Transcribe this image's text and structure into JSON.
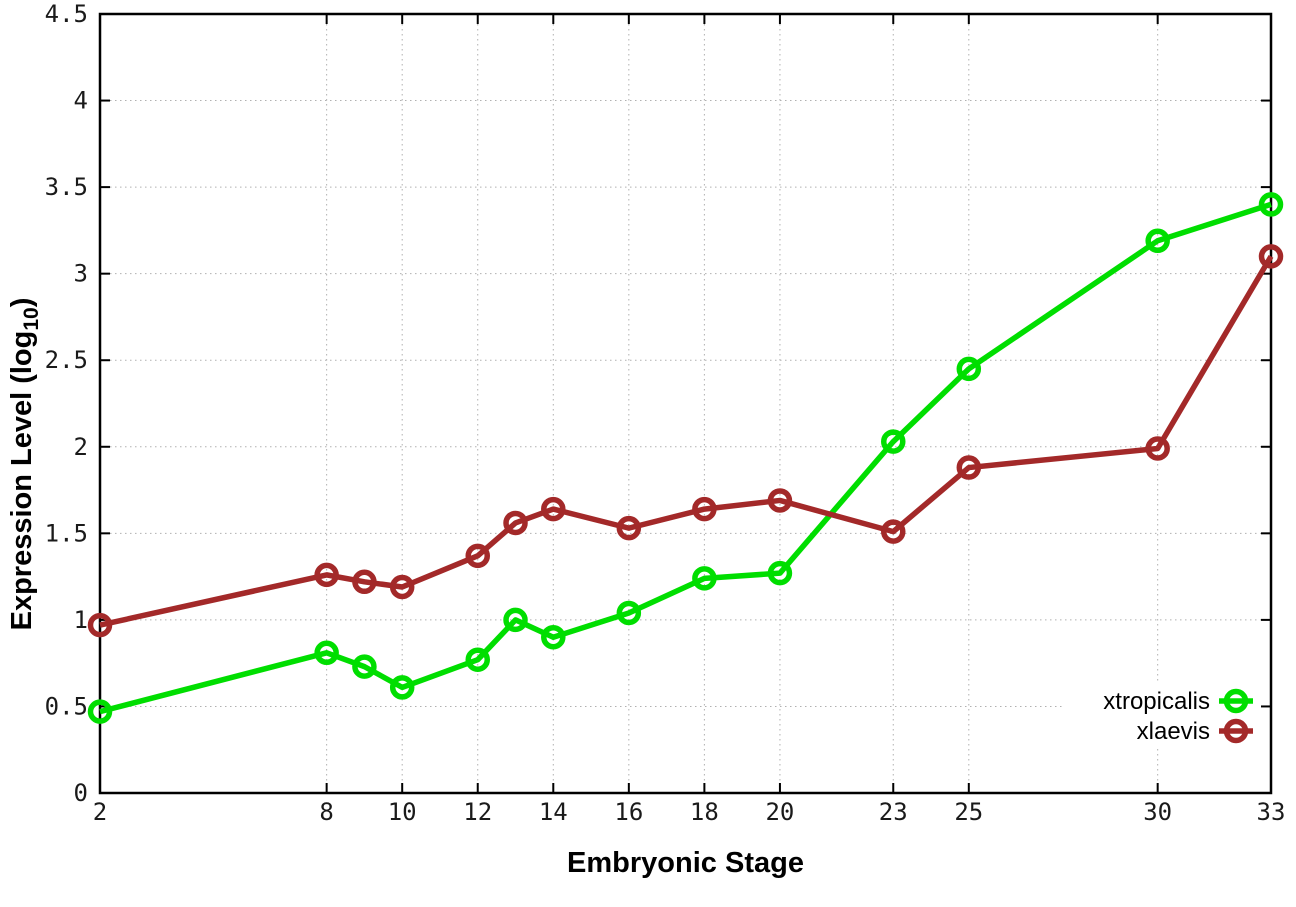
{
  "chart_data": {
    "type": "line",
    "title": "",
    "xlabel": "Embryonic Stage",
    "ylabel": "Expression Level (log10)",
    "ylabel_parts": {
      "main": "Expression Level (log",
      "sub": "10",
      "close": ")"
    },
    "x": [
      2,
      8,
      9,
      10,
      12,
      13,
      14,
      16,
      18,
      20,
      23,
      25,
      30,
      33
    ],
    "x_ticks": [
      2,
      8,
      10,
      12,
      14,
      16,
      18,
      20,
      23,
      25,
      30,
      33
    ],
    "x_tick_labels": [
      "2",
      "8",
      "10",
      "12",
      "14",
      "16",
      "18",
      "20",
      "23",
      "25",
      "30",
      "33"
    ],
    "y_ticks": [
      0,
      0.5,
      1,
      1.5,
      2,
      2.5,
      3,
      3.5,
      4,
      4.5
    ],
    "y_tick_labels": [
      "0",
      "0.5",
      "1",
      "1.5",
      "2",
      "2.5",
      "3",
      "3.5",
      "4",
      "4.5"
    ],
    "xlim": [
      2,
      33
    ],
    "ylim": [
      0,
      4.5
    ],
    "grid": true,
    "legend": {
      "position": "inside-bottom-right",
      "entries": [
        "xtropicalis",
        "xlaevis"
      ]
    },
    "series": [
      {
        "name": "xtropicalis",
        "color": "#00de00",
        "values": [
          0.47,
          0.81,
          0.73,
          0.61,
          0.77,
          1.0,
          0.9,
          1.04,
          1.24,
          1.27,
          2.03,
          2.45,
          3.19,
          3.4
        ]
      },
      {
        "name": "xlaevis",
        "color": "#a32929",
        "values": [
          0.97,
          1.26,
          1.22,
          1.19,
          1.37,
          1.56,
          1.64,
          1.53,
          1.64,
          1.69,
          1.51,
          1.88,
          1.99,
          3.1
        ]
      }
    ]
  },
  "style": {
    "background": "#ffffff",
    "grid_color": "#b0b0b0",
    "axis_color": "#000000",
    "text_color": "#1a1a1a"
  }
}
